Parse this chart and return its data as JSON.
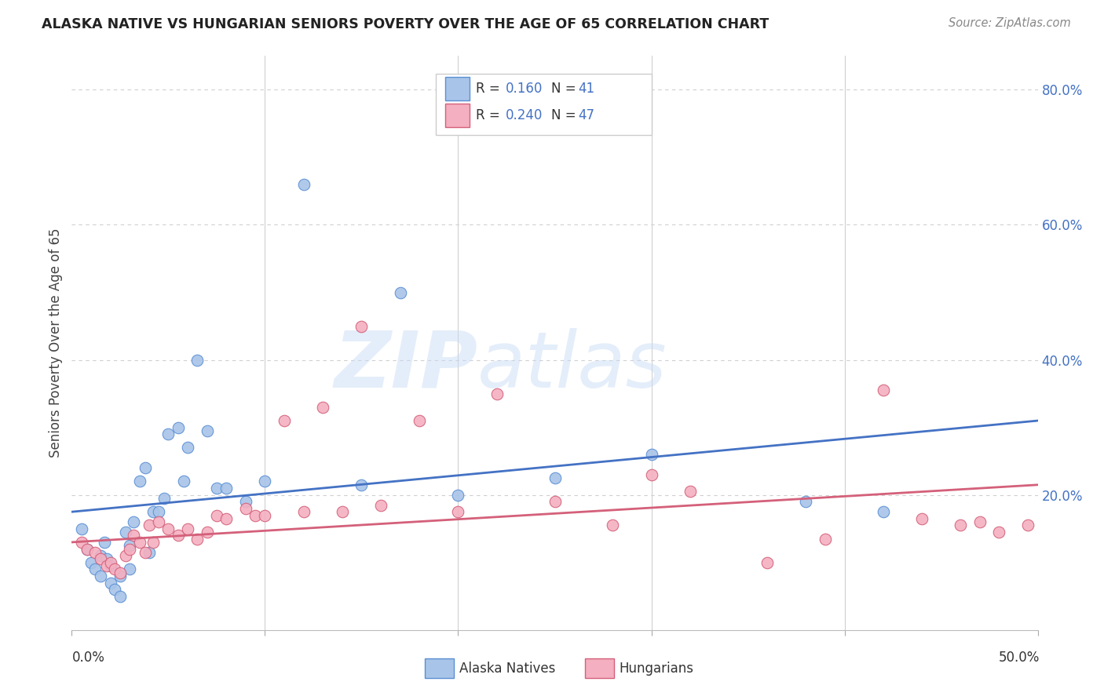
{
  "title": "ALASKA NATIVE VS HUNGARIAN SENIORS POVERTY OVER THE AGE OF 65 CORRELATION CHART",
  "source": "Source: ZipAtlas.com",
  "ylabel": "Seniors Poverty Over the Age of 65",
  "xlim": [
    0.0,
    0.5
  ],
  "ylim": [
    0.0,
    0.85
  ],
  "yticks": [
    0.0,
    0.2,
    0.4,
    0.6,
    0.8
  ],
  "ytick_labels": [
    "",
    "20.0%",
    "40.0%",
    "60.0%",
    "80.0%"
  ],
  "alaska_color": "#a8c4e8",
  "alaska_edge_color": "#5b8fd4",
  "alaska_line_color": "#4472c4",
  "hungarian_color": "#f4afc0",
  "hungarian_edge_color": "#d4607a",
  "hungarian_line_color": "#d4607a",
  "watermark_zip": "ZIP",
  "watermark_atlas": "atlas",
  "alaska_x": [
    0.005,
    0.008,
    0.01,
    0.012,
    0.015,
    0.015,
    0.017,
    0.018,
    0.02,
    0.02,
    0.022,
    0.025,
    0.025,
    0.028,
    0.03,
    0.03,
    0.032,
    0.035,
    0.038,
    0.04,
    0.042,
    0.045,
    0.048,
    0.05,
    0.055,
    0.058,
    0.06,
    0.065,
    0.07,
    0.075,
    0.08,
    0.09,
    0.1,
    0.12,
    0.15,
    0.17,
    0.2,
    0.25,
    0.3,
    0.38,
    0.42
  ],
  "alaska_y": [
    0.15,
    0.12,
    0.1,
    0.09,
    0.08,
    0.11,
    0.13,
    0.105,
    0.07,
    0.095,
    0.06,
    0.05,
    0.08,
    0.145,
    0.09,
    0.125,
    0.16,
    0.22,
    0.24,
    0.115,
    0.175,
    0.175,
    0.195,
    0.29,
    0.3,
    0.22,
    0.27,
    0.4,
    0.295,
    0.21,
    0.21,
    0.19,
    0.22,
    0.66,
    0.215,
    0.5,
    0.2,
    0.225,
    0.26,
    0.19,
    0.175
  ],
  "hungarian_x": [
    0.005,
    0.008,
    0.012,
    0.015,
    0.018,
    0.02,
    0.022,
    0.025,
    0.028,
    0.03,
    0.032,
    0.035,
    0.038,
    0.04,
    0.042,
    0.045,
    0.05,
    0.055,
    0.06,
    0.065,
    0.07,
    0.075,
    0.08,
    0.09,
    0.095,
    0.1,
    0.11,
    0.12,
    0.13,
    0.14,
    0.15,
    0.16,
    0.18,
    0.2,
    0.22,
    0.25,
    0.28,
    0.3,
    0.32,
    0.36,
    0.39,
    0.42,
    0.44,
    0.46,
    0.47,
    0.48,
    0.495
  ],
  "hungarian_y": [
    0.13,
    0.12,
    0.115,
    0.105,
    0.095,
    0.1,
    0.09,
    0.085,
    0.11,
    0.12,
    0.14,
    0.13,
    0.115,
    0.155,
    0.13,
    0.16,
    0.15,
    0.14,
    0.15,
    0.135,
    0.145,
    0.17,
    0.165,
    0.18,
    0.17,
    0.17,
    0.31,
    0.175,
    0.33,
    0.175,
    0.45,
    0.185,
    0.31,
    0.175,
    0.35,
    0.19,
    0.155,
    0.23,
    0.205,
    0.1,
    0.135,
    0.355,
    0.165,
    0.155,
    0.16,
    0.145,
    0.155
  ],
  "alaska_trend_x": [
    0.0,
    0.5
  ],
  "alaska_trend_y": [
    0.175,
    0.31
  ],
  "hungarian_trend_x": [
    0.0,
    0.5
  ],
  "hungarian_trend_y": [
    0.13,
    0.215
  ],
  "grid_color": "#d0d0d0",
  "background_color": "#ffffff",
  "legend_r1": "R = ",
  "legend_v1": "0.160",
  "legend_n1": "N = ",
  "legend_nv1": "41",
  "legend_r2": "R = ",
  "legend_v2": "0.240",
  "legend_n2": "N = ",
  "legend_nv2": "47",
  "accent_color": "#4472c4"
}
